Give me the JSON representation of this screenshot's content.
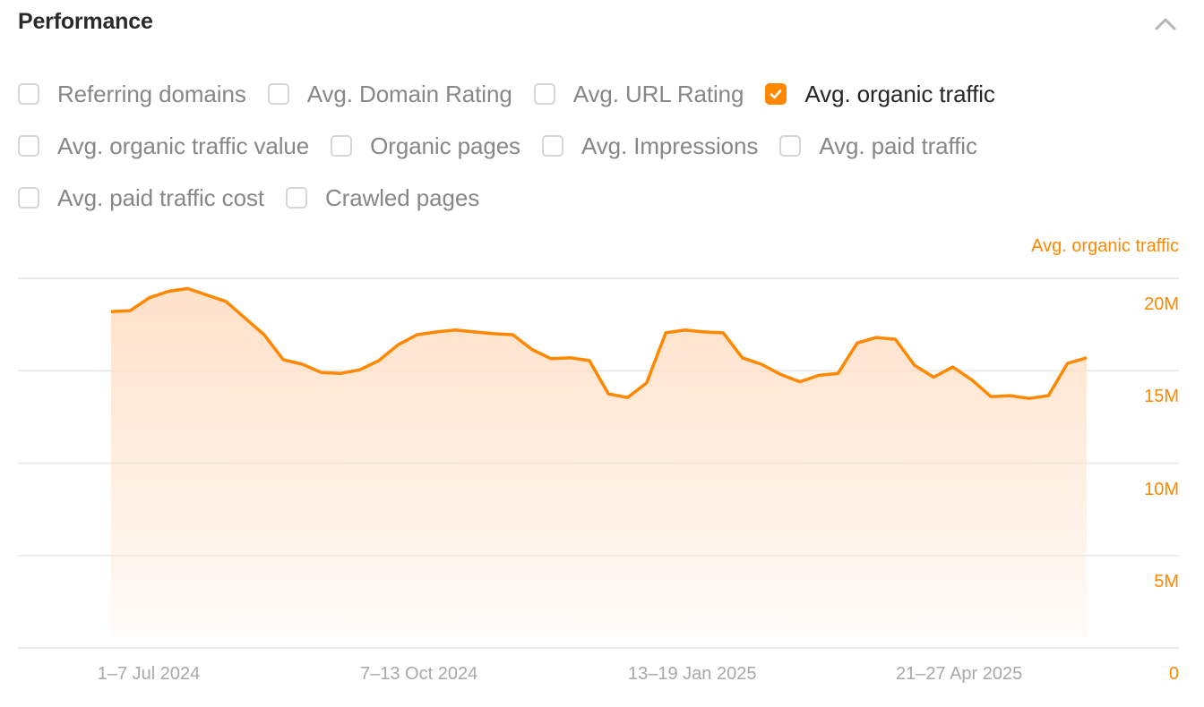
{
  "header": {
    "title": "Performance",
    "collapse_icon": "chevron-up-icon"
  },
  "metrics": [
    [
      {
        "label": "Referring domains",
        "checked": false
      },
      {
        "label": "Avg. Domain Rating",
        "checked": false
      },
      {
        "label": "Avg. URL Rating",
        "checked": false
      },
      {
        "label": "Avg. organic traffic",
        "checked": true
      }
    ],
    [
      {
        "label": "Avg. organic traffic value",
        "checked": false
      },
      {
        "label": "Organic pages",
        "checked": false
      },
      {
        "label": "Avg. Impressions",
        "checked": false
      },
      {
        "label": "Avg. paid traffic",
        "checked": false
      }
    ],
    [
      {
        "label": "Avg. paid traffic cost",
        "checked": false
      },
      {
        "label": "Crawled pages",
        "checked": false
      }
    ]
  ],
  "colors": {
    "accent": "#ff8800",
    "fill": "#ffe1c9",
    "grid": "#ebebeb",
    "axis_text": "#a8a8a8"
  },
  "chart_data": {
    "type": "area",
    "title": "Avg. organic traffic",
    "series_label": "Avg. organic traffic",
    "xlabel": "",
    "ylabel": "Avg. organic traffic",
    "ylim": [
      0,
      20000000
    ],
    "y_ticks": [
      "0",
      "5M",
      "10M",
      "15M",
      "20M"
    ],
    "y_tick_values": [
      0,
      5000000,
      10000000,
      15000000,
      20000000
    ],
    "x_tick_labels": [
      "1–7 Jul 2024",
      "7–13 Oct 2024",
      "13–19 Jan 2025",
      "21–27 Apr 2025"
    ],
    "x_tick_indices": [
      2,
      16,
      30,
      45
    ],
    "grid": true,
    "legend_position": "top-right",
    "values": [
      18.2,
      18.25,
      18.95,
      19.3,
      19.45,
      19.1,
      18.75,
      17.85,
      16.95,
      15.6,
      15.35,
      14.9,
      14.85,
      15.05,
      15.55,
      16.4,
      16.95,
      17.1,
      17.2,
      17.1,
      17.0,
      16.95,
      16.15,
      15.65,
      15.7,
      15.55,
      13.75,
      13.55,
      14.35,
      17.05,
      17.2,
      17.1,
      17.05,
      15.7,
      15.35,
      14.8,
      14.4,
      14.75,
      14.85,
      16.5,
      16.8,
      16.7,
      15.3,
      14.65,
      15.2,
      14.5,
      13.6,
      13.65,
      13.5,
      13.65,
      15.4,
      15.7
    ],
    "unit": "millions"
  }
}
